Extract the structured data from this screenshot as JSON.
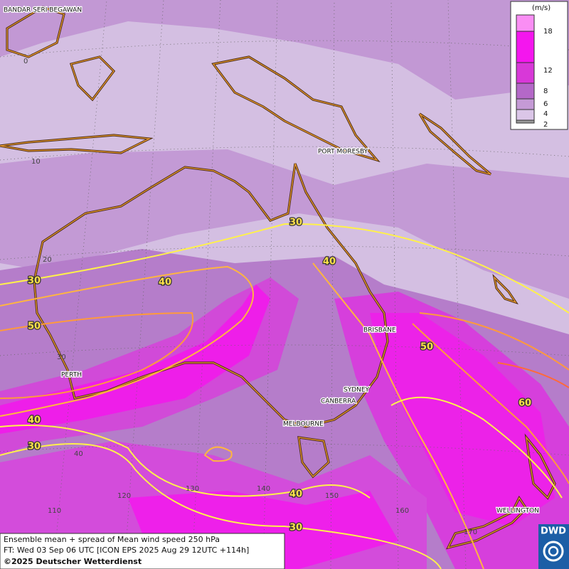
{
  "legend": {
    "unit": "(m/s)",
    "labels": [
      "18",
      "12",
      "8",
      "6",
      "4",
      "2"
    ]
  },
  "cities": [
    "BANDAR SERI BEGAWAN",
    "PORT MORESBY",
    "BRISBANE",
    "PERTH",
    "SYDNEY",
    "CANBERRA",
    "MELBOURNE",
    "WELLINGTON"
  ],
  "grid_labels": [
    "0",
    "10",
    "20",
    "30",
    "40",
    "110",
    "120",
    "130",
    "140",
    "150",
    "160",
    "170"
  ],
  "contour_labels": [
    "30",
    "40",
    "30",
    "40",
    "50",
    "50",
    "60",
    "40",
    "30",
    "40",
    "30"
  ],
  "footer": {
    "line1": "Ensemble mean + spread of Mean wind speed 250 hPa",
    "line2": "FT: Wed 03 Sep 06 UTC [ICON EPS 2025 Aug 29 12UTC +114h]",
    "copyright": "©2025 Deutscher Wetterdienst"
  },
  "logo": "DWD"
}
